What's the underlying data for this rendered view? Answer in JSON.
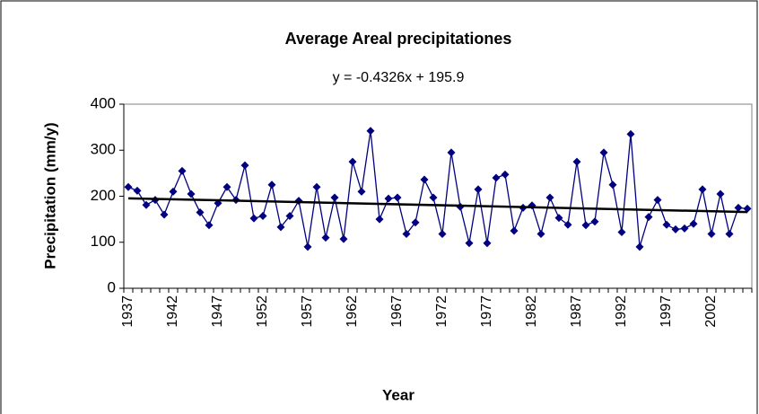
{
  "chart_data": {
    "type": "line",
    "title": "Average Areal precipitationes",
    "x_label": "Year",
    "y_label": "Precipitation (mm/y)",
    "categories": [
      "1937",
      null,
      null,
      null,
      null,
      "1942",
      null,
      null,
      null,
      null,
      "1947",
      null,
      null,
      null,
      null,
      "1952",
      null,
      null,
      null,
      null,
      "1957",
      null,
      null,
      null,
      null,
      "1962",
      null,
      null,
      null,
      null,
      "1967",
      null,
      null,
      null,
      null,
      "1972",
      null,
      null,
      null,
      null,
      "1977",
      null,
      null,
      null,
      null,
      "1982",
      null,
      null,
      null,
      null,
      "1987",
      null,
      null,
      null,
      null,
      "1992",
      null,
      null,
      null,
      null,
      "1997",
      null,
      null,
      null,
      null,
      "2002",
      null,
      null,
      null,
      null
    ],
    "series": [
      {
        "name": "Precipitation",
        "color": "#000080",
        "values": [
          220,
          212,
          181,
          192,
          160,
          210,
          255,
          205,
          165,
          137,
          185,
          220,
          192,
          267,
          152,
          157,
          225,
          133,
          157,
          190,
          90,
          220,
          110,
          197,
          107,
          275,
          210,
          342,
          150,
          195,
          197,
          118,
          143,
          236,
          197,
          118,
          295,
          177,
          98,
          215,
          98,
          240,
          247,
          125,
          175,
          180,
          118,
          197,
          153,
          138,
          275,
          137,
          145,
          295,
          225,
          122,
          335,
          90,
          155,
          192,
          138,
          128,
          130,
          140,
          215,
          118,
          205,
          118,
          175,
          173
        ]
      }
    ],
    "trendline": {
      "label": "y = -0.4326x + 195.9",
      "slope": -0.4326,
      "intercept": 195.9,
      "color": "#000000"
    },
    "ylim": [
      0,
      400
    ],
    "yticks": [
      0,
      100,
      200,
      300,
      400
    ],
    "grid": false
  }
}
